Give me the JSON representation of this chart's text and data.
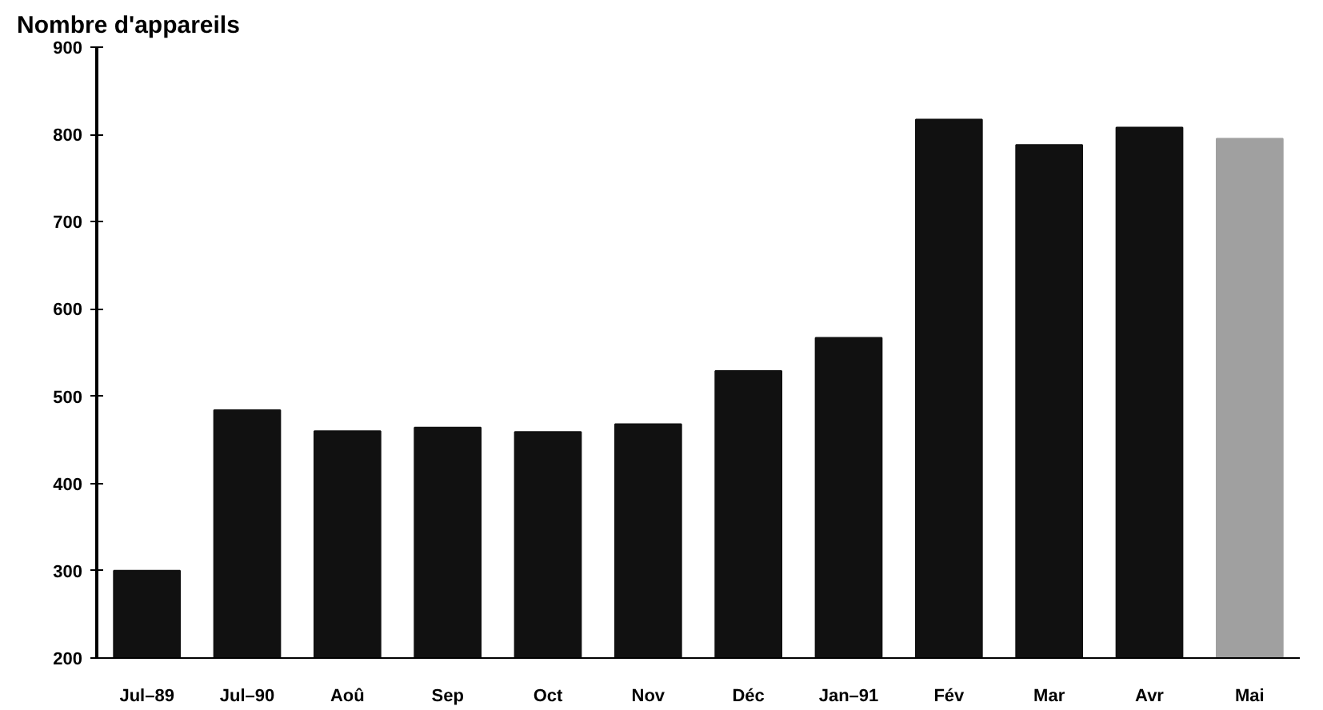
{
  "chart_data": {
    "type": "bar",
    "ylabel": "Nombre d'appareils",
    "categories": [
      "Jul–89",
      "Jul–90",
      "Aoû",
      "Sep",
      "Oct",
      "Nov",
      "Déc",
      "Jan–91",
      "Fév",
      "Mar",
      "Avr",
      "Mai"
    ],
    "values": [
      300,
      484,
      460,
      464,
      459,
      468,
      529,
      567,
      817,
      788,
      808,
      795
    ],
    "colors": [
      "#111111",
      "#111111",
      "#111111",
      "#111111",
      "#111111",
      "#111111",
      "#111111",
      "#111111",
      "#111111",
      "#111111",
      "#111111",
      "#a0a0a0"
    ],
    "ylim": [
      200,
      900
    ],
    "yticks": [
      200,
      300,
      400,
      500,
      600,
      700,
      800,
      900
    ],
    "grid": false
  }
}
